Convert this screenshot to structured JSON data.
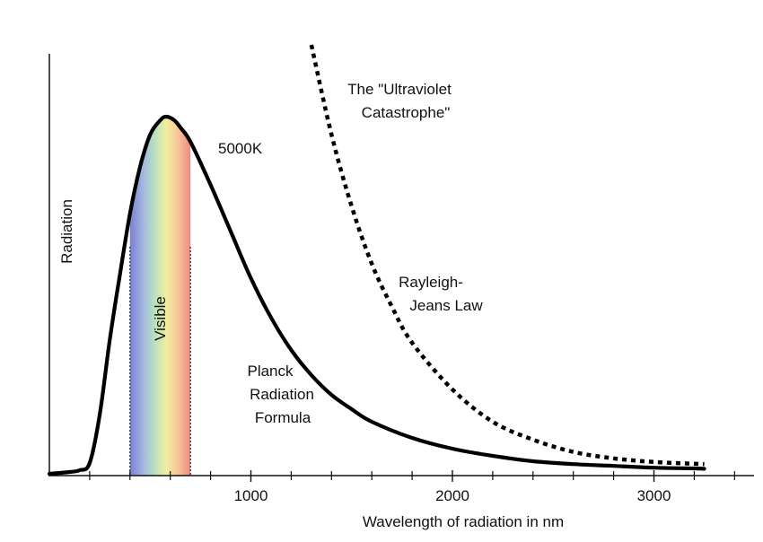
{
  "chart_data": {
    "type": "line",
    "title": "",
    "xlabel": "Wavelength of radiation in nm",
    "ylabel": "Radiation",
    "xlim": [
      0,
      3400
    ],
    "ylim": [
      0,
      1.0
    ],
    "x_ticks": [
      1000,
      2000,
      3000
    ],
    "x_tick_labels": [
      "1000",
      "2000",
      "3000"
    ],
    "x_minor_ticks": [
      200,
      400,
      600,
      800,
      1200,
      1400,
      1600,
      1800,
      2200,
      2400,
      2600,
      2800,
      3200,
      3400
    ],
    "grid": false,
    "legend": "none",
    "visible_band": {
      "label": "Visible",
      "range_nm": [
        400,
        700
      ],
      "colors": [
        "#7a7fd0",
        "#9fb2e2",
        "#b6e0c0",
        "#f2eea0",
        "#f6c49a",
        "#ee8a80"
      ]
    },
    "series": [
      {
        "name": "Planck Radiation Formula",
        "style": "solid",
        "color": "#000000",
        "x": [
          0,
          100,
          150,
          200,
          250,
          300,
          350,
          400,
          450,
          500,
          550,
          580,
          620,
          650,
          700,
          800,
          900,
          1000,
          1100,
          1200,
          1300,
          1400,
          1500,
          1600,
          1800,
          2000,
          2200,
          2400,
          2600,
          2800,
          3000,
          3200,
          3250
        ],
        "y": [
          0.005,
          0.01,
          0.015,
          0.035,
          0.17,
          0.38,
          0.56,
          0.73,
          0.86,
          0.95,
          0.99,
          1.0,
          0.99,
          0.97,
          0.93,
          0.81,
          0.68,
          0.55,
          0.44,
          0.35,
          0.28,
          0.225,
          0.185,
          0.15,
          0.105,
          0.075,
          0.055,
          0.04,
          0.032,
          0.027,
          0.022,
          0.02,
          0.019
        ]
      },
      {
        "name": "Rayleigh-Jeans Law",
        "style": "dashed",
        "color": "#000000",
        "x": [
          1300,
          1400,
          1500,
          1600,
          1700,
          1800,
          2000,
          2200,
          2400,
          2600,
          2800,
          3000,
          3200,
          3250
        ],
        "y": [
          1.2,
          0.95,
          0.75,
          0.59,
          0.47,
          0.37,
          0.24,
          0.15,
          0.1,
          0.066,
          0.048,
          0.038,
          0.033,
          0.032
        ]
      }
    ],
    "annotations": {
      "temperature": "5000K",
      "uv_line1": "The \"Ultraviolet",
      "uv_line2": "Catastrophe\"",
      "rj_line1": "Rayleigh-",
      "rj_line2": "Jeans Law",
      "planck_line1": "Planck",
      "planck_line2": "Radiation",
      "planck_line3": "Formula"
    }
  }
}
